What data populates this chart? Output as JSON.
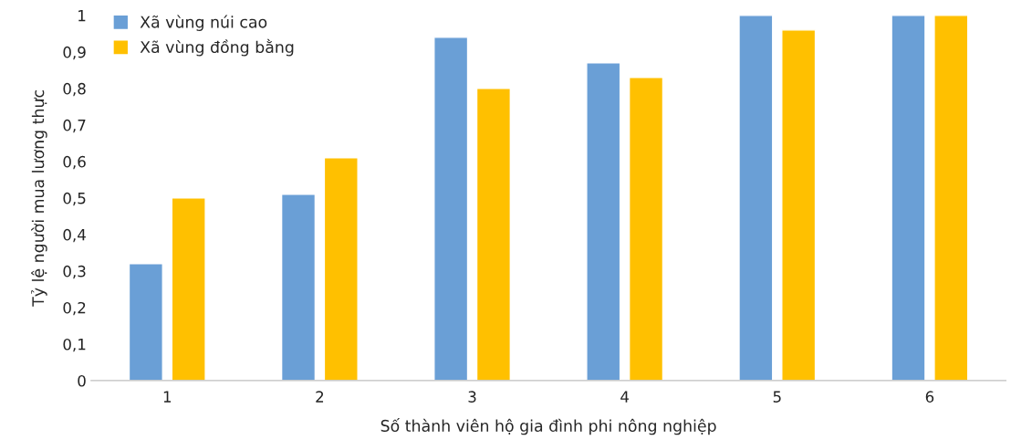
{
  "chart_data": {
    "type": "bar",
    "xlabel": "Số thành viên hộ gia đình phi nông nghiệp",
    "ylabel": "Tỷ lệ người mua lương thực",
    "categories": [
      "1",
      "2",
      "3",
      "4",
      "5",
      "6"
    ],
    "series": [
      {
        "name": "Xã vùng núi cao",
        "color": "#6a9fd6",
        "values": [
          0.32,
          0.51,
          0.94,
          0.87,
          1.0,
          1.0
        ]
      },
      {
        "name": "Xã vùng đồng bằng",
        "color": "#ffc000",
        "values": [
          0.5,
          0.61,
          0.8,
          0.83,
          0.96,
          1.0
        ]
      }
    ],
    "ylim": [
      0,
      1
    ],
    "yticks": [
      0,
      {
        "value": 0.1,
        "label": "0,1"
      },
      {
        "value": 0.2,
        "label": "0,2"
      },
      {
        "value": 0.3,
        "label": "0,3"
      },
      {
        "value": 0.4,
        "label": "0,4"
      },
      {
        "value": 0.5,
        "label": "0,5"
      },
      {
        "value": 0.6,
        "label": "0,6"
      },
      {
        "value": 0.7,
        "label": "0,7"
      },
      {
        "value": 0.8,
        "label": "0,8"
      },
      {
        "value": 0.9,
        "label": "0,9"
      },
      1
    ],
    "grid": false,
    "legend": "top left"
  }
}
